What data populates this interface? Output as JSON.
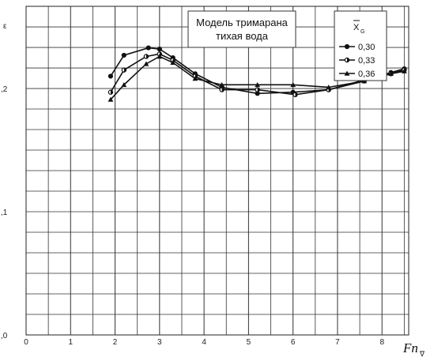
{
  "chart_data": {
    "type": "line",
    "title": "Модель тримарана",
    "subtitle": "тихая вода",
    "ylabel": "ε",
    "xlabel_main": "Fn",
    "xlabel_sub": "∇",
    "legend_title_main": "X",
    "legend_title_sub": "G",
    "legend_position": "top-right",
    "grid": true,
    "xlim": [
      0,
      8.6
    ],
    "ylim": [
      0,
      0.2667
    ],
    "x_ticks": [
      0,
      1,
      2,
      3,
      4,
      5,
      6,
      7,
      8
    ],
    "x_tick_labels": [
      "0",
      "1",
      "2",
      "3",
      "4",
      "5",
      "6",
      "7",
      "8"
    ],
    "y_ticks": [
      0,
      0.1,
      0.2
    ],
    "y_tick_labels": [
      ",0",
      ",1",
      ",2"
    ],
    "series": [
      {
        "name": "0,30",
        "marker": "circle",
        "x": [
          1.9,
          2.2,
          2.75,
          3.0,
          3.3,
          3.8,
          4.4,
          5.2,
          6.0,
          6.8,
          7.6,
          8.2,
          8.5
        ],
        "y": [
          0.21,
          0.227,
          0.233,
          0.232,
          0.225,
          0.212,
          0.201,
          0.196,
          0.197,
          0.199,
          0.206,
          0.213,
          0.216
        ]
      },
      {
        "name": "0,33",
        "marker": "half-circle",
        "x": [
          1.9,
          2.2,
          2.7,
          3.0,
          3.3,
          3.8,
          4.4,
          5.2,
          6.05,
          6.8,
          7.6,
          8.2,
          8.5
        ],
        "y": [
          0.197,
          0.215,
          0.226,
          0.228,
          0.223,
          0.21,
          0.199,
          0.199,
          0.195,
          0.199,
          0.207,
          0.212,
          0.215
        ]
      },
      {
        "name": "0,36",
        "marker": "triangle",
        "x": [
          1.9,
          2.2,
          2.7,
          3.0,
          3.3,
          3.8,
          4.4,
          5.2,
          6.0,
          6.8,
          7.6,
          8.2,
          8.5
        ],
        "y": [
          0.191,
          0.203,
          0.22,
          0.226,
          0.221,
          0.208,
          0.203,
          0.203,
          0.203,
          0.201,
          0.206,
          0.212,
          0.214
        ]
      }
    ]
  }
}
